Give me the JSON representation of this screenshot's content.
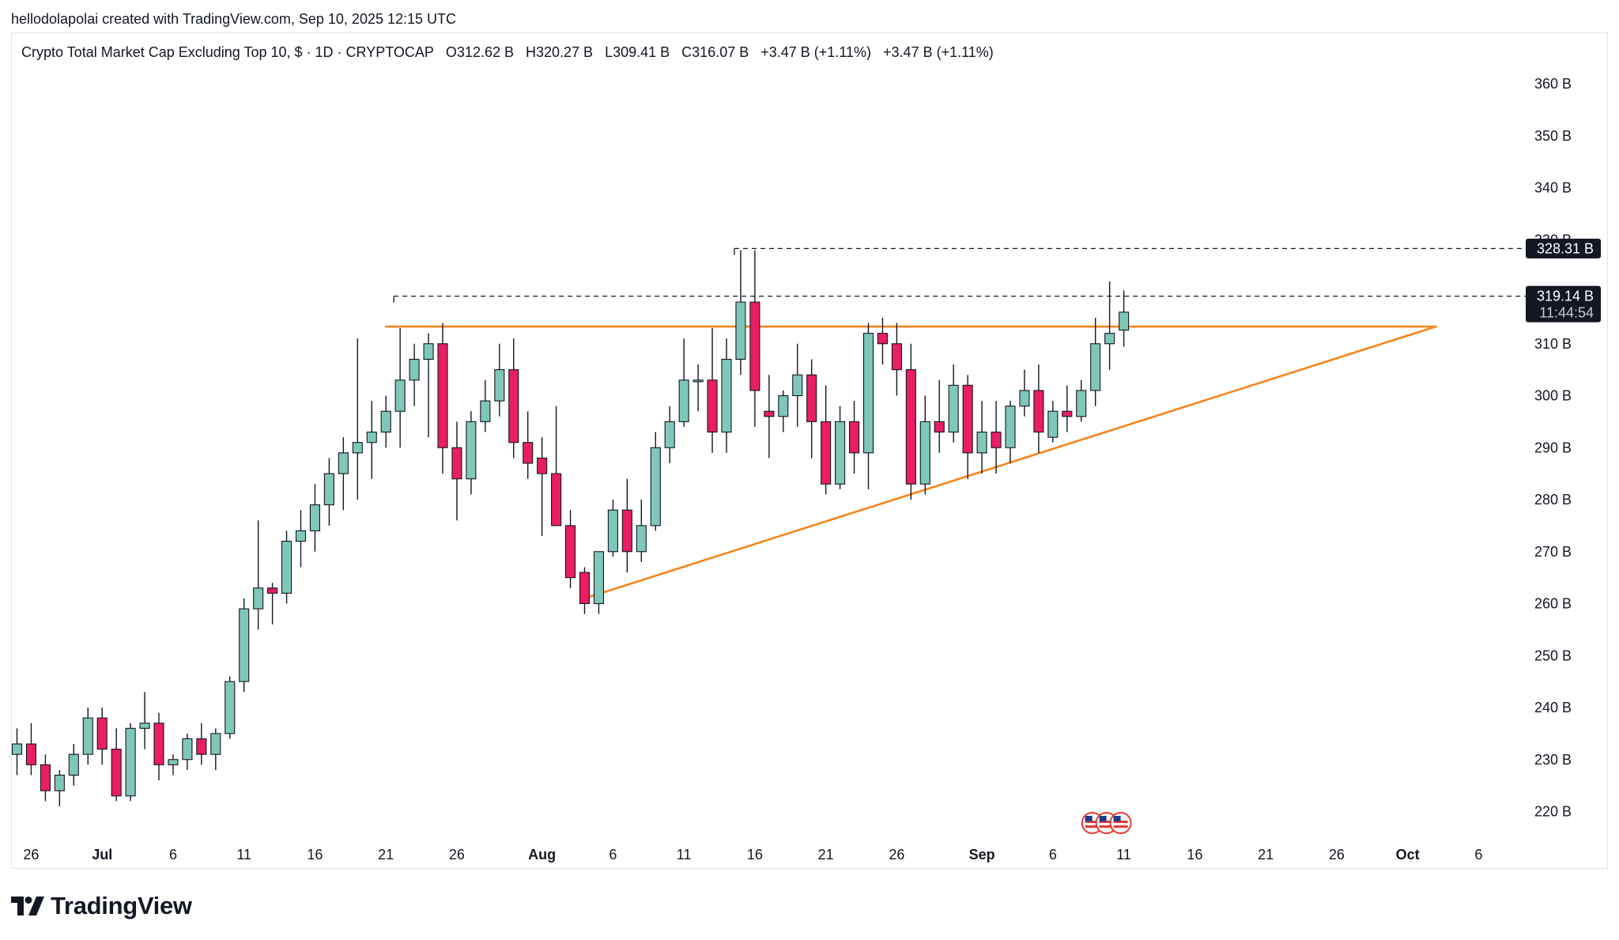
{
  "header": {
    "attribution": "hellodolapolai created with TradingView.com, Sep 10, 2025 12:15 UTC"
  },
  "legend": {
    "symbol": "Crypto Total Market Cap Excluding Top 10, $ · 1D · CRYPTOCAP",
    "open": "O312.62 B",
    "high": "H320.27 B",
    "low": "L309.41 B",
    "close": "C316.07 B",
    "change1": "+3.47 B (+1.11%)",
    "change2": "+3.47 B (+1.11%)"
  },
  "footer": {
    "logo_text": "TradingView",
    "logo_icon": "tradingview-logo-icon"
  },
  "colors": {
    "up": "#7fc7b9",
    "down": "#e91e63",
    "wick": "#131722",
    "trendline": "#f7841c",
    "dashed": "#131722",
    "axis_text": "#131722",
    "label_bg": "#131722",
    "label_text": "#ffffff"
  },
  "chart_data": {
    "type": "candlestick",
    "title": "Crypto Total Market Cap Excluding Top 10, $ · 1D · CRYPTOCAP",
    "y_unit": "B",
    "ylim": [
      215,
      365
    ],
    "y_ticks": [
      "360 B",
      "350 B",
      "340 B",
      "330 B",
      "320 B",
      "310 B",
      "300 B",
      "290 B",
      "280 B",
      "270 B",
      "260 B",
      "250 B",
      "240 B",
      "230 B",
      "220 B"
    ],
    "y_tick_values": [
      360,
      350,
      340,
      330,
      320,
      310,
      300,
      290,
      280,
      270,
      260,
      250,
      240,
      230,
      220
    ],
    "x_start": "2025-06-25",
    "x_end": "2025-10-08",
    "x_ticks": [
      {
        "label": "26",
        "date": "2025-06-26"
      },
      {
        "label": "Jul",
        "date": "2025-07-01"
      },
      {
        "label": "6",
        "date": "2025-07-06"
      },
      {
        "label": "11",
        "date": "2025-07-11"
      },
      {
        "label": "16",
        "date": "2025-07-16"
      },
      {
        "label": "21",
        "date": "2025-07-21"
      },
      {
        "label": "26",
        "date": "2025-07-26"
      },
      {
        "label": "Aug",
        "date": "2025-08-01"
      },
      {
        "label": "6",
        "date": "2025-08-06"
      },
      {
        "label": "11",
        "date": "2025-08-11"
      },
      {
        "label": "16",
        "date": "2025-08-16"
      },
      {
        "label": "21",
        "date": "2025-08-21"
      },
      {
        "label": "26",
        "date": "2025-08-26"
      },
      {
        "label": "Sep",
        "date": "2025-09-01"
      },
      {
        "label": "6",
        "date": "2025-09-06"
      },
      {
        "label": "11",
        "date": "2025-09-11"
      },
      {
        "label": "16",
        "date": "2025-09-16"
      },
      {
        "label": "21",
        "date": "2025-09-21"
      },
      {
        "label": "26",
        "date": "2025-09-26"
      },
      {
        "label": "Oct",
        "date": "2025-10-01"
      },
      {
        "label": "6",
        "date": "2025-10-06"
      }
    ],
    "candles": [
      {
        "date": "2025-06-25",
        "o": 231,
        "h": 236,
        "l": 227,
        "c": 233
      },
      {
        "date": "2025-06-26",
        "o": 233,
        "h": 237,
        "l": 227,
        "c": 229
      },
      {
        "date": "2025-06-27",
        "o": 229,
        "h": 231,
        "l": 222,
        "c": 224
      },
      {
        "date": "2025-06-28",
        "o": 224,
        "h": 228,
        "l": 221,
        "c": 227
      },
      {
        "date": "2025-06-29",
        "o": 227,
        "h": 233,
        "l": 225,
        "c": 231
      },
      {
        "date": "2025-06-30",
        "o": 231,
        "h": 240,
        "l": 229,
        "c": 238
      },
      {
        "date": "2025-07-01",
        "o": 238,
        "h": 240,
        "l": 229,
        "c": 232
      },
      {
        "date": "2025-07-02",
        "o": 232,
        "h": 236,
        "l": 222,
        "c": 223
      },
      {
        "date": "2025-07-03",
        "o": 223,
        "h": 237,
        "l": 222,
        "c": 236
      },
      {
        "date": "2025-07-04",
        "o": 236,
        "h": 243,
        "l": 232,
        "c": 237
      },
      {
        "date": "2025-07-05",
        "o": 237,
        "h": 239,
        "l": 226,
        "c": 229
      },
      {
        "date": "2025-07-06",
        "o": 229,
        "h": 231,
        "l": 227,
        "c": 230
      },
      {
        "date": "2025-07-07",
        "o": 230,
        "h": 235,
        "l": 228,
        "c": 234
      },
      {
        "date": "2025-07-08",
        "o": 234,
        "h": 237,
        "l": 229,
        "c": 231
      },
      {
        "date": "2025-07-09",
        "o": 231,
        "h": 236,
        "l": 228,
        "c": 235
      },
      {
        "date": "2025-07-10",
        "o": 235,
        "h": 246,
        "l": 234,
        "c": 245
      },
      {
        "date": "2025-07-11",
        "o": 245,
        "h": 261,
        "l": 243,
        "c": 259
      },
      {
        "date": "2025-07-12",
        "o": 259,
        "h": 276,
        "l": 255,
        "c": 263
      },
      {
        "date": "2025-07-13",
        "o": 263,
        "h": 264,
        "l": 256,
        "c": 262
      },
      {
        "date": "2025-07-14",
        "o": 262,
        "h": 274,
        "l": 260,
        "c": 272
      },
      {
        "date": "2025-07-15",
        "o": 272,
        "h": 278,
        "l": 267,
        "c": 274
      },
      {
        "date": "2025-07-16",
        "o": 274,
        "h": 283,
        "l": 270,
        "c": 279
      },
      {
        "date": "2025-07-17",
        "o": 279,
        "h": 288,
        "l": 275,
        "c": 285
      },
      {
        "date": "2025-07-18",
        "o": 285,
        "h": 292,
        "l": 278,
        "c": 289
      },
      {
        "date": "2025-07-19",
        "o": 289,
        "h": 311,
        "l": 280,
        "c": 291
      },
      {
        "date": "2025-07-20",
        "o": 291,
        "h": 299,
        "l": 284,
        "c": 293
      },
      {
        "date": "2025-07-21",
        "o": 293,
        "h": 300,
        "l": 290,
        "c": 297
      },
      {
        "date": "2025-07-22",
        "o": 297,
        "h": 313,
        "l": 290,
        "c": 303
      },
      {
        "date": "2025-07-23",
        "o": 303,
        "h": 310,
        "l": 298,
        "c": 307
      },
      {
        "date": "2025-07-24",
        "o": 307,
        "h": 312,
        "l": 292,
        "c": 310
      },
      {
        "date": "2025-07-25",
        "o": 310,
        "h": 314,
        "l": 285,
        "c": 290
      },
      {
        "date": "2025-07-26",
        "o": 290,
        "h": 295,
        "l": 276,
        "c": 284
      },
      {
        "date": "2025-07-27",
        "o": 284,
        "h": 297,
        "l": 281,
        "c": 295
      },
      {
        "date": "2025-07-28",
        "o": 295,
        "h": 303,
        "l": 293,
        "c": 299
      },
      {
        "date": "2025-07-29",
        "o": 299,
        "h": 310,
        "l": 296,
        "c": 305
      },
      {
        "date": "2025-07-30",
        "o": 305,
        "h": 311,
        "l": 288,
        "c": 291
      },
      {
        "date": "2025-07-31",
        "o": 291,
        "h": 297,
        "l": 284,
        "c": 287
      },
      {
        "date": "2025-08-01",
        "o": 288,
        "h": 292,
        "l": 273,
        "c": 285
      },
      {
        "date": "2025-08-02",
        "o": 285,
        "h": 298,
        "l": 276,
        "c": 275
      },
      {
        "date": "2025-08-03",
        "o": 275,
        "h": 278,
        "l": 263,
        "c": 265
      },
      {
        "date": "2025-08-04",
        "o": 266,
        "h": 267,
        "l": 258,
        "c": 260
      },
      {
        "date": "2025-08-05",
        "o": 260,
        "h": 270,
        "l": 258,
        "c": 270
      },
      {
        "date": "2025-08-06",
        "o": 270,
        "h": 280,
        "l": 269,
        "c": 278
      },
      {
        "date": "2025-08-07",
        "o": 278,
        "h": 284,
        "l": 266,
        "c": 270
      },
      {
        "date": "2025-08-08",
        "o": 270,
        "h": 280,
        "l": 268,
        "c": 275
      },
      {
        "date": "2025-08-09",
        "o": 275,
        "h": 293,
        "l": 274,
        "c": 290
      },
      {
        "date": "2025-08-10",
        "o": 290,
        "h": 298,
        "l": 287,
        "c": 295
      },
      {
        "date": "2025-08-11",
        "o": 295,
        "h": 311,
        "l": 294,
        "c": 303
      },
      {
        "date": "2025-08-12",
        "o": 303,
        "h": 306,
        "l": 297,
        "c": 303
      },
      {
        "date": "2025-08-13",
        "o": 303,
        "h": 313,
        "l": 289,
        "c": 293
      },
      {
        "date": "2025-08-14",
        "o": 293,
        "h": 311,
        "l": 289,
        "c": 307
      },
      {
        "date": "2025-08-15",
        "o": 307,
        "h": 328,
        "l": 304,
        "c": 318
      },
      {
        "date": "2025-08-16",
        "o": 318,
        "h": 328,
        "l": 294,
        "c": 301
      },
      {
        "date": "2025-08-17",
        "o": 297,
        "h": 304,
        "l": 288,
        "c": 296
      },
      {
        "date": "2025-08-18",
        "o": 296,
        "h": 301,
        "l": 293,
        "c": 300
      },
      {
        "date": "2025-08-19",
        "o": 300,
        "h": 310,
        "l": 294,
        "c": 304
      },
      {
        "date": "2025-08-20",
        "o": 304,
        "h": 307,
        "l": 288,
        "c": 295
      },
      {
        "date": "2025-08-21",
        "o": 295,
        "h": 302,
        "l": 281,
        "c": 283
      },
      {
        "date": "2025-08-22",
        "o": 283,
        "h": 298,
        "l": 282,
        "c": 295
      },
      {
        "date": "2025-08-23",
        "o": 295,
        "h": 299,
        "l": 285,
        "c": 289
      },
      {
        "date": "2025-08-24",
        "o": 289,
        "h": 314,
        "l": 282,
        "c": 312
      },
      {
        "date": "2025-08-25",
        "o": 312,
        "h": 315,
        "l": 306,
        "c": 310
      },
      {
        "date": "2025-08-26",
        "o": 310,
        "h": 314,
        "l": 300,
        "c": 305
      },
      {
        "date": "2025-08-27",
        "o": 305,
        "h": 310,
        "l": 280,
        "c": 283
      },
      {
        "date": "2025-08-28",
        "o": 283,
        "h": 300,
        "l": 281,
        "c": 295
      },
      {
        "date": "2025-08-29",
        "o": 295,
        "h": 303,
        "l": 289,
        "c": 293
      },
      {
        "date": "2025-08-30",
        "o": 293,
        "h": 306,
        "l": 291,
        "c": 302
      },
      {
        "date": "2025-08-31",
        "o": 302,
        "h": 304,
        "l": 284,
        "c": 289
      },
      {
        "date": "2025-09-01",
        "o": 289,
        "h": 299,
        "l": 285,
        "c": 293
      },
      {
        "date": "2025-09-02",
        "o": 293,
        "h": 299,
        "l": 285,
        "c": 290
      },
      {
        "date": "2025-09-03",
        "o": 290,
        "h": 299,
        "l": 287,
        "c": 298
      },
      {
        "date": "2025-09-04",
        "o": 298,
        "h": 305,
        "l": 296,
        "c": 301
      },
      {
        "date": "2025-09-05",
        "o": 301,
        "h": 306,
        "l": 289,
        "c": 293
      },
      {
        "date": "2025-09-06",
        "o": 292,
        "h": 299,
        "l": 291,
        "c": 297
      },
      {
        "date": "2025-09-07",
        "o": 297,
        "h": 302,
        "l": 293,
        "c": 296
      },
      {
        "date": "2025-09-08",
        "o": 296,
        "h": 303,
        "l": 295,
        "c": 301
      },
      {
        "date": "2025-09-09",
        "o": 301,
        "h": 315,
        "l": 298,
        "c": 310
      },
      {
        "date": "2025-09-10",
        "o": 310,
        "h": 322,
        "l": 305,
        "c": 312
      },
      {
        "date": "2025-09-11",
        "o": 312.62,
        "h": 320.27,
        "l": 309.41,
        "c": 316.07
      }
    ],
    "price_lines": [
      {
        "label": "328.31 B",
        "value": 328.31,
        "from": "2025-08-15"
      },
      {
        "label": "319.14 B",
        "value": 319.14,
        "from": "2025-07-22"
      }
    ],
    "countdown_label": "11:44:54",
    "trendlines": [
      {
        "name": "resistance",
        "from": {
          "date": "2025-07-21",
          "value": 313.3
        },
        "to": {
          "date": "2025-10-03",
          "value": 313.3
        }
      },
      {
        "name": "support",
        "from": {
          "date": "2025-08-04",
          "value": 261
        },
        "to": {
          "date": "2025-10-03",
          "value": 313.3
        }
      }
    ],
    "event_markers": [
      {
        "date": "2025-09-09",
        "icon": "us-flag-icon"
      },
      {
        "date": "2025-09-10",
        "icon": "us-flag-icon"
      },
      {
        "date": "2025-09-11",
        "icon": "us-flag-icon"
      }
    ],
    "grid": false,
    "legend": "top-left"
  }
}
